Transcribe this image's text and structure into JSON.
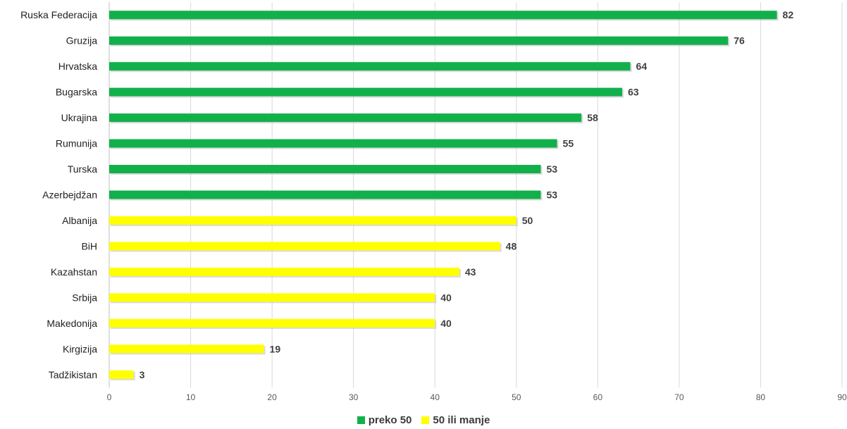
{
  "chart_data": {
    "type": "bar",
    "orientation": "horizontal",
    "title": "",
    "xlabel": "",
    "ylabel": "",
    "xlim": [
      0,
      90
    ],
    "x_ticks": [
      0,
      10,
      20,
      30,
      40,
      50,
      60,
      70,
      80,
      90
    ],
    "grid": true,
    "legend_position": "bottom",
    "series": [
      {
        "name": "preko 50",
        "color": "#12B04B",
        "categories": [
          "Ruska Federacija",
          "Gruzija",
          "Hrvatska",
          "Bugarska",
          "Ukrajina",
          "Rumunija",
          "Turska",
          "Azerbejdžan"
        ],
        "values": [
          82,
          76,
          64,
          63,
          58,
          55,
          53,
          53
        ]
      },
      {
        "name": "50 ili manje",
        "color": "#FFFF00",
        "categories": [
          "Albanija",
          "BiH",
          "Kazahstan",
          "Srbija",
          "Makedonija",
          "Kirgizija",
          "Tadžikistan"
        ],
        "values": [
          50,
          48,
          43,
          40,
          40,
          19,
          3
        ]
      }
    ]
  }
}
